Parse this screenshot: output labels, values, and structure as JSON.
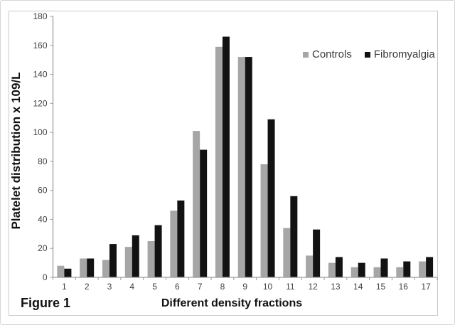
{
  "figure": {
    "caption": "Figure 1"
  },
  "chart_data": {
    "type": "bar",
    "title": "",
    "xlabel": "Different density fractions",
    "ylabel": "Platelet distribution x 109/L",
    "categories": [
      "1",
      "2",
      "3",
      "4",
      "5",
      "6",
      "7",
      "8",
      "9",
      "10",
      "11",
      "12",
      "13",
      "14",
      "15",
      "16",
      "17"
    ],
    "series": [
      {
        "name": "Controls",
        "color": "#a6a6a6",
        "values": [
          8,
          13,
          12,
          21,
          25,
          46,
          101,
          159,
          152,
          78,
          34,
          15,
          10,
          7,
          7,
          7,
          11
        ]
      },
      {
        "name": "Fibromyalgia",
        "color": "#121212",
        "values": [
          6,
          13,
          23,
          29,
          36,
          53,
          88,
          166,
          152,
          109,
          56,
          33,
          14,
          10,
          13,
          11,
          14
        ]
      }
    ],
    "ylim": [
      0,
      180
    ],
    "ytick_step": 20,
    "grid": false,
    "legend_position": "top-right-inside"
  },
  "colors": {
    "axis": "#9b9b9b",
    "tick_label": "#404040",
    "figure_border": "#c9c9c9"
  }
}
